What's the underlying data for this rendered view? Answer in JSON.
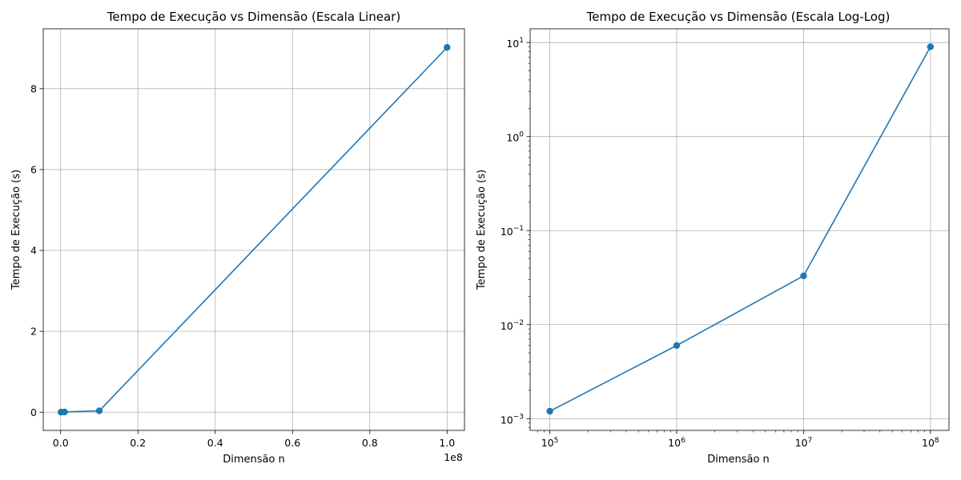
{
  "chart_data": [
    {
      "type": "line",
      "title": "Tempo de Execução vs Dimensão (Escala Linear)",
      "xlabel": "Dimensão n",
      "ylabel": "Tempo de Execução (s)",
      "x_scale": "linear",
      "y_scale": "linear",
      "x_offset_label": "1e8",
      "xlim": [
        -4500000,
        104500000
      ],
      "ylim": [
        -0.45,
        9.48
      ],
      "x_ticks": [
        0,
        20000000,
        40000000,
        60000000,
        80000000,
        100000000
      ],
      "x_tick_labels": [
        "0.0",
        "0.2",
        "0.4",
        "0.6",
        "0.8",
        "1.0"
      ],
      "y_ticks": [
        0,
        2,
        4,
        6,
        8
      ],
      "y_tick_labels": [
        "0",
        "2",
        "4",
        "6",
        "8"
      ],
      "grid": true,
      "marker": "circle",
      "color": "#1f77b4",
      "series": [
        {
          "x": [
            100000,
            1000000,
            10000000,
            100000000
          ],
          "y": [
            0.0012,
            0.006,
            0.033,
            9.02
          ]
        }
      ]
    },
    {
      "type": "line",
      "title": "Tempo de Execução vs Dimensão (Escala Log-Log)",
      "xlabel": "Dimensão n",
      "ylabel": "Tempo de Execução (s)",
      "x_scale": "log",
      "y_scale": "log",
      "xlim": [
        70000,
        140000000
      ],
      "ylim": [
        0.00075,
        14
      ],
      "x_ticks": [
        100000,
        1000000,
        10000000,
        100000000
      ],
      "x_tick_labels": [
        [
          "10",
          "5"
        ],
        [
          "10",
          "6"
        ],
        [
          "10",
          "7"
        ],
        [
          "10",
          "8"
        ]
      ],
      "y_ticks": [
        0.001,
        0.01,
        0.1,
        1,
        10
      ],
      "y_tick_labels": [
        [
          "10",
          "−3"
        ],
        [
          "10",
          "−2"
        ],
        [
          "10",
          "−1"
        ],
        [
          "10",
          "0"
        ],
        [
          "10",
          "1"
        ]
      ],
      "grid": true,
      "marker": "circle",
      "color": "#1f77b4",
      "series": [
        {
          "x": [
            100000,
            1000000,
            10000000,
            100000000
          ],
          "y": [
            0.0012,
            0.006,
            0.033,
            9.02
          ]
        }
      ]
    }
  ]
}
